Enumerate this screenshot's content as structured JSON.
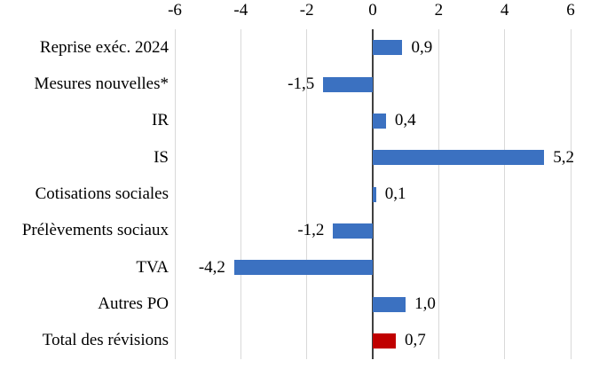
{
  "chart_data": {
    "type": "bar",
    "orientation": "horizontal",
    "title": "",
    "xlabel": "",
    "ylabel": "",
    "xlim": [
      -6,
      6
    ],
    "grid": "vertical",
    "legend": "none",
    "axis_position": "top",
    "background_color": "#FFFFFF",
    "gridline_color": "#D9D9D9",
    "zero_line_color": "#3F3F3F",
    "default_bar_color": "#3B71C1",
    "total_bar_color": "#C00000",
    "x_ticks": [
      {
        "value": -6,
        "label": "-6"
      },
      {
        "value": -4,
        "label": "-4"
      },
      {
        "value": -2,
        "label": "-2"
      },
      {
        "value": 0,
        "label": "0"
      },
      {
        "value": 2,
        "label": "2"
      },
      {
        "value": 4,
        "label": "4"
      },
      {
        "value": 6,
        "label": "6"
      }
    ],
    "items": [
      {
        "category": "Reprise exéc. 2024",
        "value": 0.9,
        "value_label": "0,9",
        "color": "#3B71C1"
      },
      {
        "category": "Mesures nouvelles*",
        "value": -1.5,
        "value_label": "-1,5",
        "color": "#3B71C1"
      },
      {
        "category": "IR",
        "value": 0.4,
        "value_label": "0,4",
        "color": "#3B71C1"
      },
      {
        "category": "IS",
        "value": 5.2,
        "value_label": "5,2",
        "color": "#3B71C1"
      },
      {
        "category": "Cotisations sociales",
        "value": 0.1,
        "value_label": "0,1",
        "color": "#3B71C1"
      },
      {
        "category": "Prélèvements sociaux",
        "value": -1.2,
        "value_label": "-1,2",
        "color": "#3B71C1"
      },
      {
        "category": "TVA",
        "value": -4.2,
        "value_label": "-4,2",
        "color": "#3B71C1"
      },
      {
        "category": "Autres PO",
        "value": 1.0,
        "value_label": "1,0",
        "color": "#3B71C1"
      },
      {
        "category": "Total des révisions",
        "value": 0.7,
        "value_label": "0,7",
        "color": "#C00000"
      }
    ]
  }
}
